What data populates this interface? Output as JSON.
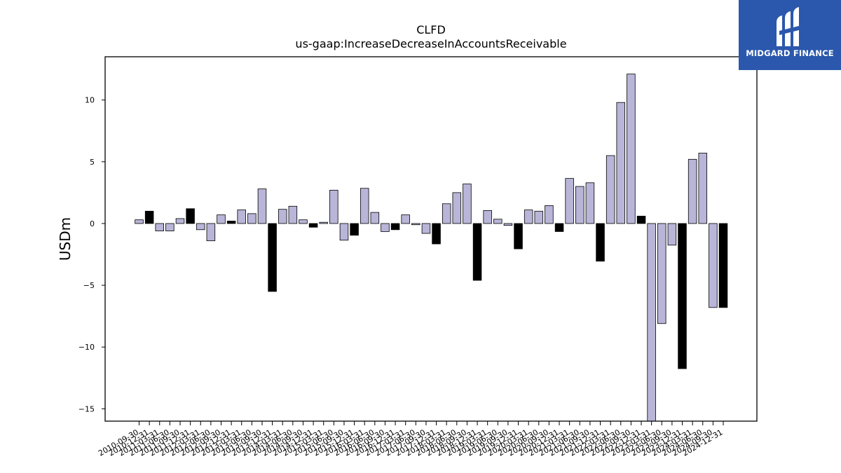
{
  "logo": {
    "text": "MIDGARD FINANCE",
    "icon": "midgard-m-logo-icon",
    "background": "#2b58ac"
  },
  "chart_data": {
    "type": "bar",
    "title": "CLFD",
    "subtitle": "us-gaap:IncreaseDecreaseInAccountsReceivable",
    "xlabel": "",
    "ylabel": "USDm",
    "ylim": [
      -16,
      13.5
    ],
    "yticks": [
      10,
      5,
      0,
      -5,
      -10,
      -15
    ],
    "ytick_labels": [
      "10",
      "5",
      "0",
      "−5",
      "−10",
      "−15"
    ],
    "colors": {
      "quarterly": "#b8b5d8",
      "annual": "#000000",
      "edge": "#000000"
    },
    "categories": [
      "2010-09-30",
      "2010-12-31",
      "2011-03-31",
      "2011-06-30",
      "2011-09-30",
      "2011-12-31",
      "2012-03-31",
      "2012-06-30",
      "2012-09-30",
      "2012-12-31",
      "2013-03-31",
      "2013-06-30",
      "2013-09-30",
      "2013-12-31",
      "2014-03-31",
      "2014-06-30",
      "2014-09-30",
      "2014-12-31",
      "2015-03-31",
      "2015-06-30",
      "2015-09-30",
      "2015-12-31",
      "2016-03-31",
      "2016-06-30",
      "2016-09-30",
      "2016-12-31",
      "2017-03-31",
      "2017-06-30",
      "2017-09-30",
      "2017-12-31",
      "2018-03-31",
      "2018-06-30",
      "2018-09-30",
      "2018-12-31",
      "2019-03-31",
      "2019-06-30",
      "2019-09-30",
      "2019-12-31",
      "2020-03-31",
      "2020-06-30",
      "2020-09-30",
      "2020-12-31",
      "2021-03-31",
      "2021-06-30",
      "2021-09-30",
      "2021-12-31",
      "2022-03-31",
      "2022-06-30",
      "2022-09-30",
      "2022-12-31",
      "2023-03-31",
      "2023-06-30",
      "2023-09-30",
      "2023-12-31",
      "2024-03-31",
      "2024-06-30",
      "2024-09-30",
      "2024-12-31"
    ],
    "tick_labels": [
      "2010-09-30",
      "2010-12-31",
      "2011-03-31",
      "2011-06-30",
      "2011-09-30",
      "2011-12-31",
      "2012-03-31",
      "2012-06-30",
      "2012-09-30",
      "2012-12-31",
      "2013-03-31",
      "2013-06-30",
      "2013-09-30",
      "2013-12-31",
      "2014-03-31",
      "2014-06-30",
      "2014-09-30",
      "2014-12-31",
      "2015-03-31",
      "2015-06-30",
      "2015-09-30",
      "2015-12-31",
      "2016-03-31",
      "2016-06-30",
      "2016-09-30",
      "2016-12-31",
      "2017-03-31",
      "2017-06-30",
      "2017-09-30",
      "2017-12-31",
      "2018-03-31",
      "2018-06-30",
      "2018-09-30",
      "2018-12-31",
      "2019-03-31",
      "2019-06-30",
      "2019-09-30",
      "2019-12-31",
      "2020-03-31",
      "2020-06-30",
      "2020-09-30",
      "2020-12-31",
      "2021-03-31",
      "2021-06-30",
      "2021-09-30",
      "2021-12-31",
      "2022-03-31",
      "2022-06-30",
      "2022-09-30",
      "2022-12-31",
      "2023-03-31",
      "2023-06-30",
      "2023-09-30",
      "2023-12-31",
      "2024-03-31",
      "2024-06-30",
      "2024-09-30",
      "2024-12-31"
    ],
    "values": [
      0.3,
      1.0,
      -0.6,
      -0.6,
      0.4,
      1.2,
      -0.5,
      -1.4,
      0.7,
      0.2,
      1.1,
      0.8,
      2.8,
      -5.5,
      1.15,
      1.4,
      0.3,
      -0.3,
      0.1,
      2.7,
      -1.35,
      -0.95,
      2.85,
      0.9,
      -0.65,
      -0.5,
      0.7,
      -0.1,
      -0.8,
      -1.65,
      1.6,
      2.5,
      3.2,
      -4.6,
      1.05,
      0.35,
      -0.15,
      -2.05,
      1.1,
      1.0,
      1.45,
      -0.65,
      3.65,
      3.0,
      3.3,
      -3.05,
      5.5,
      9.8,
      12.1,
      0.6,
      -16.0,
      -8.1,
      -1.75,
      -11.75,
      5.2,
      5.7,
      -6.8,
      -6.8
    ],
    "annual": [
      false,
      true,
      false,
      false,
      false,
      true,
      false,
      false,
      false,
      true,
      false,
      false,
      false,
      true,
      false,
      false,
      false,
      true,
      false,
      false,
      false,
      true,
      false,
      false,
      false,
      true,
      false,
      false,
      false,
      true,
      false,
      false,
      false,
      true,
      false,
      false,
      false,
      true,
      false,
      false,
      false,
      true,
      false,
      false,
      false,
      true,
      false,
      false,
      false,
      true,
      false,
      false,
      false,
      true,
      false,
      false,
      false,
      true
    ],
    "grid": false,
    "legend": "none"
  }
}
